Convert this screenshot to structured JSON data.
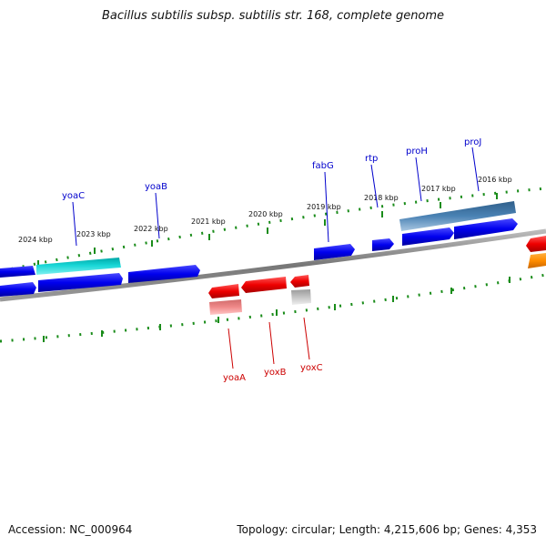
{
  "title": "Bacillus subtilis subsp. subtilis str. 168, complete genome",
  "footer": {
    "accession": "Accession: NC_000964",
    "summary": "Topology: circular; Length: 4,215,606 bp; Genes: 4,353"
  },
  "colors": {
    "background": "#ffffff",
    "kbp_ticks": "#1a8c1a",
    "plus_gene_label": "#0000cc",
    "minus_gene_label": "#cc0000",
    "backbone": "#888888"
  },
  "kbp_labels": [
    "2024 kbp",
    "2023 kbp",
    "2022 kbp",
    "2021 kbp",
    "2020 kbp",
    "2019 kbp",
    "2018 kbp",
    "2017 kbp",
    "2016 kbp"
  ],
  "plus_genes": [
    "yoaC",
    "yoaB",
    "fabG",
    "rtp",
    "proH",
    "proJ"
  ],
  "minus_genes": [
    "yoaA",
    "yoxB",
    "yoxC"
  ]
}
